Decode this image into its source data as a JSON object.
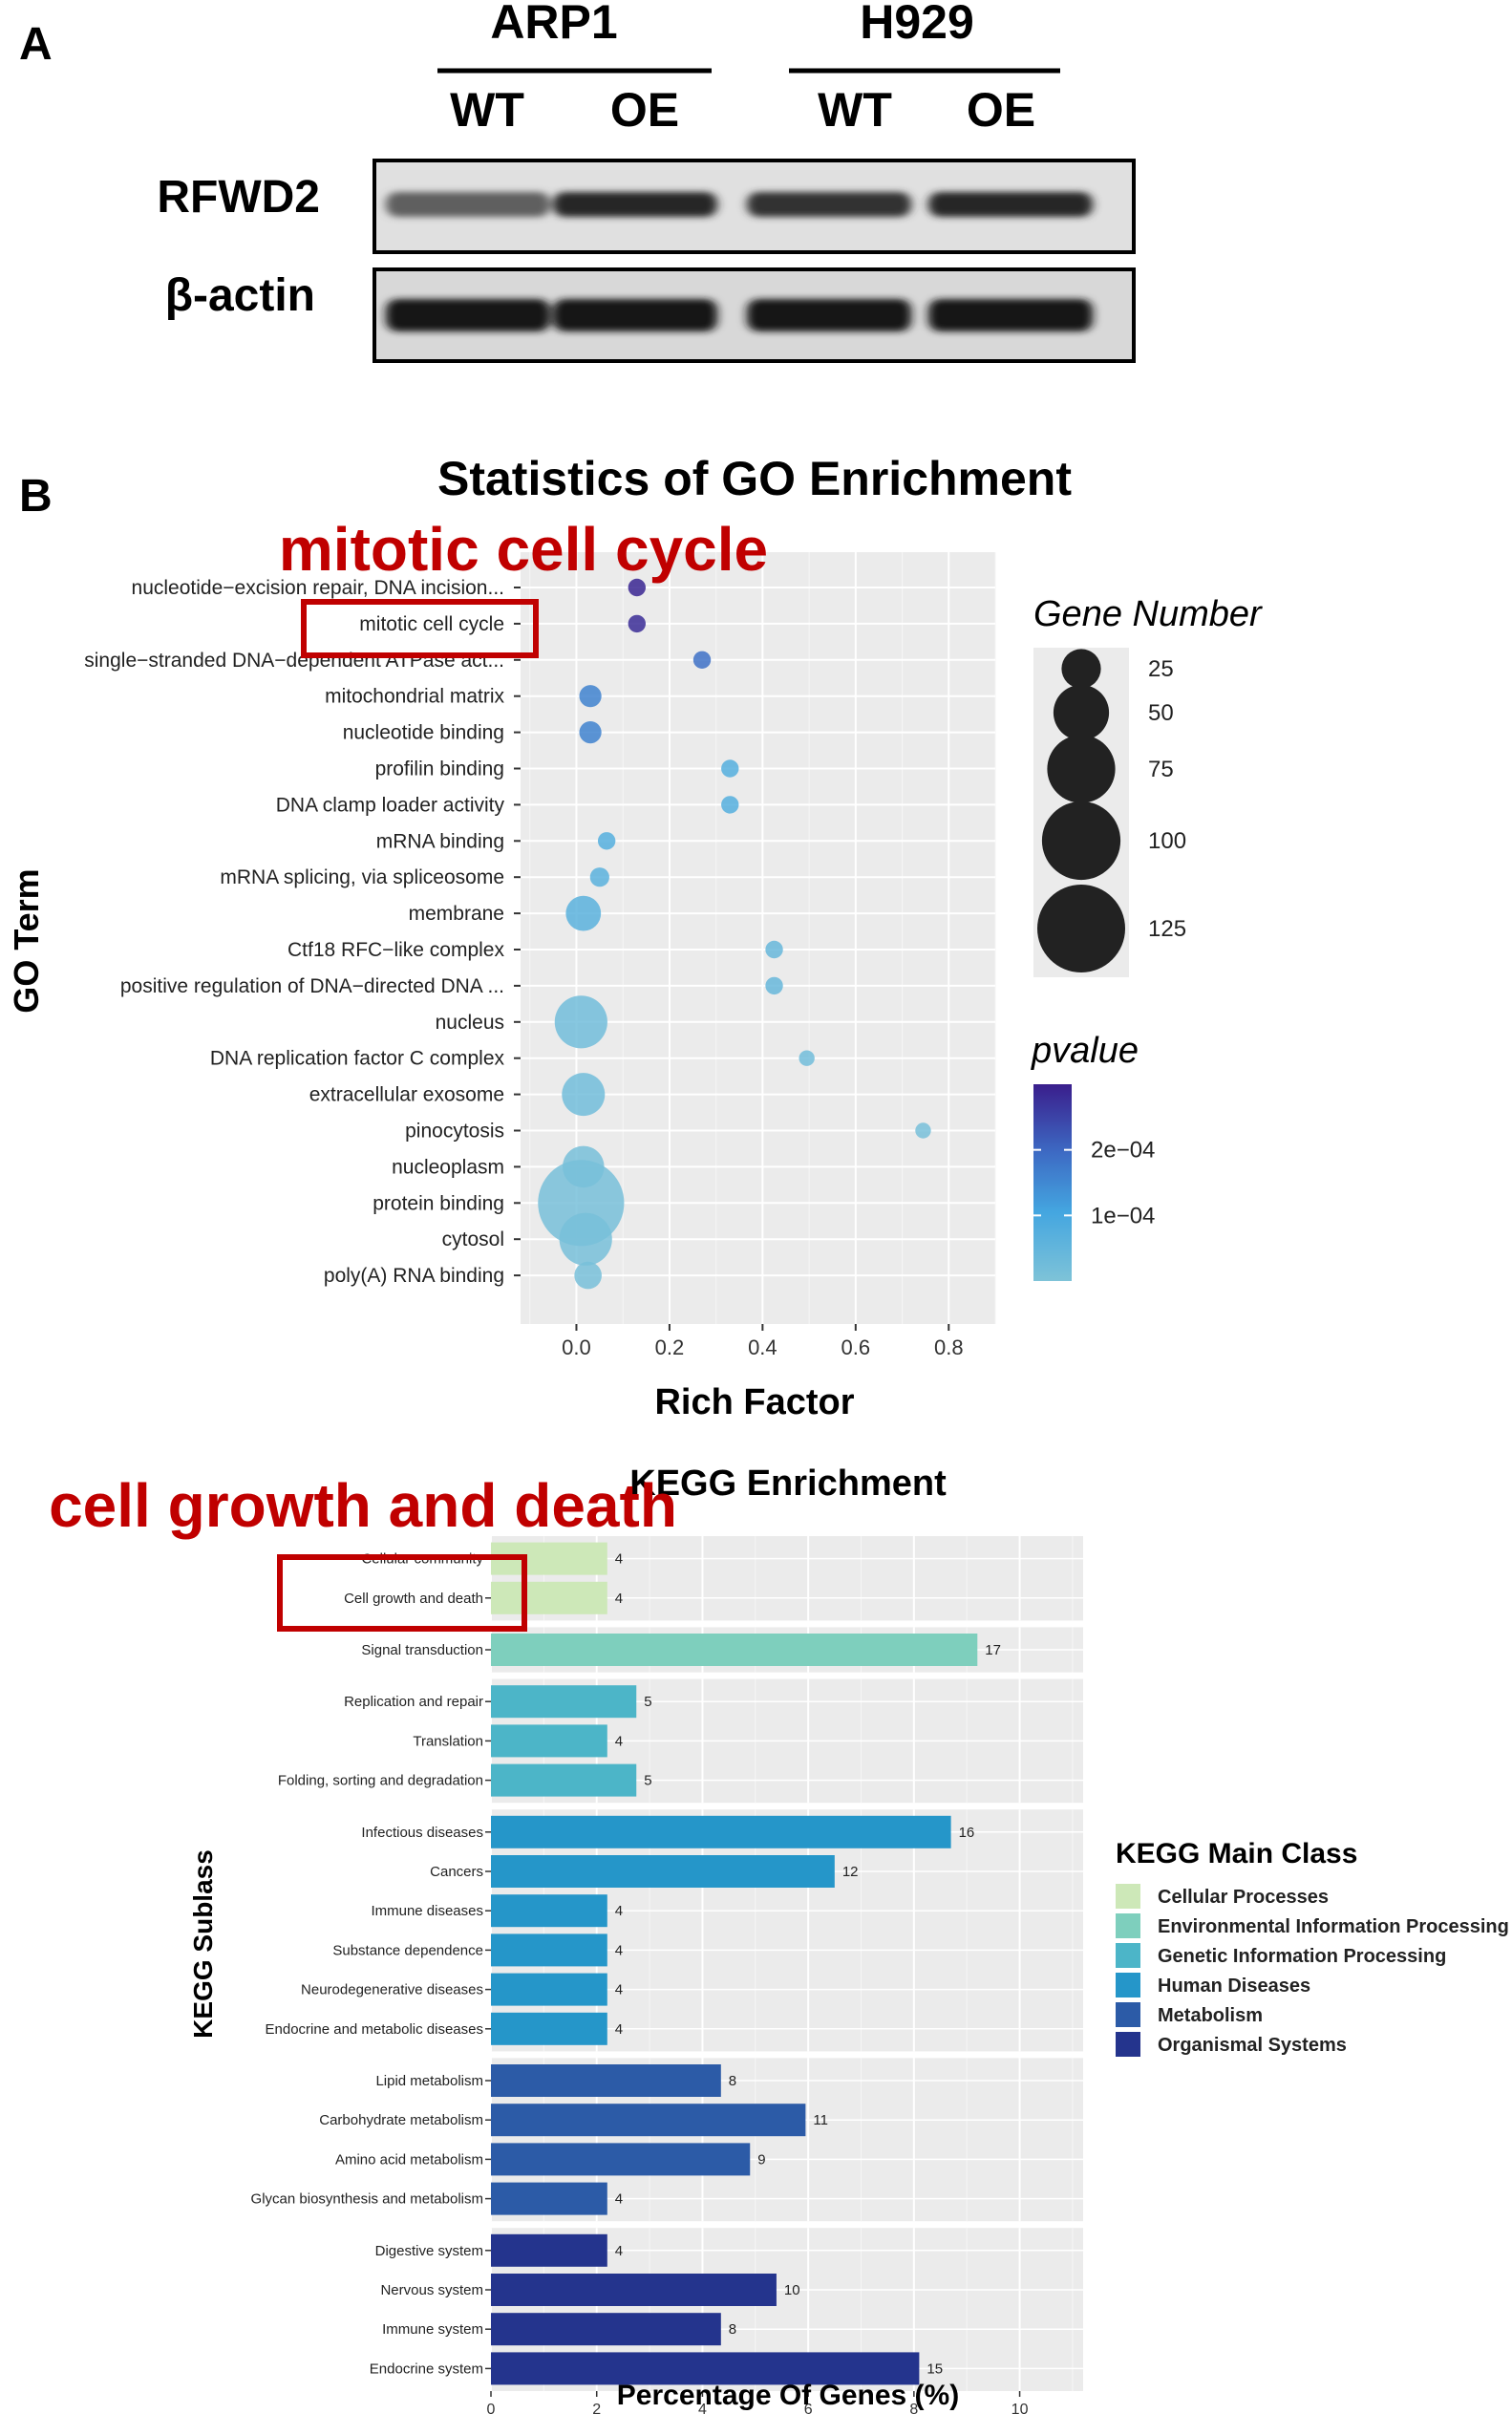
{
  "panel_a": {
    "label": "A",
    "cell_lines": [
      "ARP1",
      "H929"
    ],
    "conditions": [
      "WT",
      "OE",
      "WT",
      "OE"
    ],
    "blots": [
      {
        "name": "RFWD2",
        "band_intensity": [
          0.55,
          0.85,
          0.8,
          0.85
        ]
      },
      {
        "name": "β-actin",
        "band_intensity": [
          0.95,
          0.95,
          0.95,
          0.95
        ]
      }
    ]
  },
  "panel_b_label": "B",
  "go_highlight_label": "mitotic cell cycle",
  "kegg_highlight_label": "cell growth and death",
  "chart_data": [
    {
      "type": "scatter",
      "title": "Statistics of GO Enrichment",
      "xlabel": "Rich Factor",
      "ylabel": "GO Term",
      "xlim": [
        -0.12,
        0.9
      ],
      "xticks": [
        "0.0",
        "0.2",
        "0.4",
        "0.6",
        "0.8"
      ],
      "terms": [
        "nucleotide−excision repair, DNA incision...",
        "mitotic cell cycle",
        "single−stranded DNA−dependent ATPase act...",
        "mitochondrial matrix",
        "nucleotide binding",
        "profilin binding",
        "DNA clamp loader activity",
        "mRNA binding",
        "mRNA splicing, via spliceosome",
        "membrane",
        "Ctf18 RFC−like complex",
        "positive regulation of DNA−directed DNA ...",
        "nucleus",
        "DNA replication factor C complex",
        "extracellular exosome",
        "pinocytosis",
        "nucleoplasm",
        "protein binding",
        "cytosol",
        "poly(A) RNA binding"
      ],
      "rich_factor": [
        0.13,
        0.13,
        0.27,
        0.03,
        0.03,
        0.33,
        0.33,
        0.065,
        0.05,
        0.015,
        0.425,
        0.425,
        0.01,
        0.495,
        0.015,
        0.745,
        0.015,
        0.01,
        0.02,
        0.025
      ],
      "gene_number": [
        5,
        5,
        5,
        8,
        8,
        5,
        5,
        5,
        6,
        20,
        5,
        5,
        45,
        4,
        30,
        4,
        28,
        120,
        45,
        12
      ],
      "pvalue": [
        0.00029,
        0.00028,
        0.00019,
        0.00016,
        0.00016,
        7e-05,
        7e-05,
        7e-05,
        6e-05,
        6e-05,
        4e-05,
        4e-05,
        2e-05,
        2e-05,
        2e-05,
        1e-05,
        1e-05,
        1e-05,
        1e-05,
        1e-05
      ],
      "legend_size": {
        "title": "Gene Number",
        "entries": [
          25,
          50,
          75,
          100,
          125
        ],
        "labels": [
          "25",
          "50",
          "75",
          "100",
          "125"
        ]
      },
      "legend_color": {
        "title": "pvalue",
        "ticks": [
          "2e−04",
          "1e−04"
        ],
        "tick_values": [
          0.0002,
          0.0001
        ],
        "range": [
          0.0,
          0.0003
        ],
        "colors": [
          "#7ec3d8",
          "#44a6e0",
          "#3d6bc4",
          "#3a1e8c"
        ]
      }
    },
    {
      "type": "bar",
      "orientation": "horizontal",
      "title": "KEGG Enrichment",
      "xlabel": "Percentage Of Genes (%)",
      "ylabel": "KEGG Sublass",
      "xlim": [
        0,
        11.2
      ],
      "xticks": [
        "0",
        "2",
        "4",
        "6",
        "8",
        "10"
      ],
      "groups": [
        {
          "class": "Cellular Processes",
          "color": "#cde8b8",
          "items": [
            {
              "label": "Cellular community",
              "percent": 2.2,
              "count": "4"
            },
            {
              "label": "Cell growth and death",
              "percent": 2.2,
              "count": "4"
            }
          ]
        },
        {
          "class": "Environmental Information Processing",
          "color": "#7ecfbd",
          "items": [
            {
              "label": "Signal transduction",
              "percent": 9.2,
              "count": "17"
            }
          ]
        },
        {
          "class": "Genetic Information Processing",
          "color": "#4cb5c8",
          "items": [
            {
              "label": "Replication and repair",
              "percent": 2.75,
              "count": "5"
            },
            {
              "label": "Translation",
              "percent": 2.2,
              "count": "4"
            },
            {
              "label": "Folding, sorting and degradation",
              "percent": 2.75,
              "count": "5"
            }
          ]
        },
        {
          "class": "Human Diseases",
          "color": "#2596c9",
          "items": [
            {
              "label": "Infectious diseases",
              "percent": 8.7,
              "count": "16"
            },
            {
              "label": "Cancers",
              "percent": 6.5,
              "count": "12"
            },
            {
              "label": "Immune diseases",
              "percent": 2.2,
              "count": "4"
            },
            {
              "label": "Substance dependence",
              "percent": 2.2,
              "count": "4"
            },
            {
              "label": "Neurodegenerative diseases",
              "percent": 2.2,
              "count": "4"
            },
            {
              "label": "Endocrine and metabolic diseases",
              "percent": 2.2,
              "count": "4"
            }
          ]
        },
        {
          "class": "Metabolism",
          "color": "#2c5ba7",
          "items": [
            {
              "label": "Lipid metabolism",
              "percent": 4.35,
              "count": "8"
            },
            {
              "label": "Carbohydrate metabolism",
              "percent": 5.95,
              "count": "11"
            },
            {
              "label": "Amino acid metabolism",
              "percent": 4.9,
              "count": "9"
            },
            {
              "label": "Glycan biosynthesis and metabolism",
              "percent": 2.2,
              "count": "4"
            }
          ]
        },
        {
          "class": "Organismal Systems",
          "color": "#24348d",
          "items": [
            {
              "label": "Digestive system",
              "percent": 2.2,
              "count": "4"
            },
            {
              "label": "Nervous system",
              "percent": 5.4,
              "count": "10"
            },
            {
              "label": "Immune system",
              "percent": 4.35,
              "count": "8"
            },
            {
              "label": "Endocrine system",
              "percent": 8.1,
              "count": "15"
            }
          ]
        }
      ],
      "legend": {
        "title": "KEGG Main Class",
        "entries": [
          "Cellular Processes",
          "Environmental Information Processing",
          "Genetic Information Processing",
          "Human Diseases",
          "Metabolism",
          "Organismal Systems"
        ]
      }
    }
  ]
}
